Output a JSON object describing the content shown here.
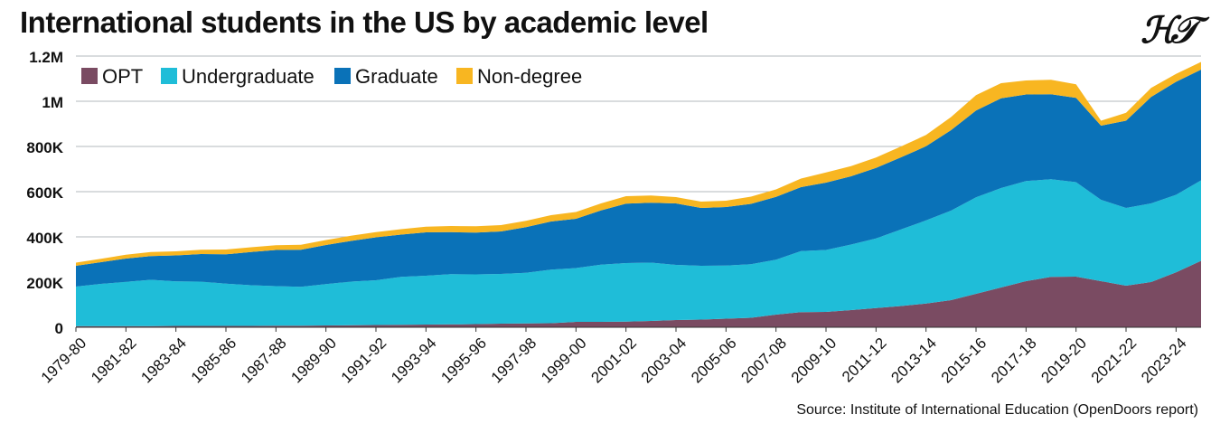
{
  "title": "International students in the US by academic level",
  "logo_text": "HT",
  "source": "Source: Institute of International Education (OpenDoors report)",
  "chart_data": {
    "type": "area",
    "stacked": true,
    "ylim": [
      0,
      1200000
    ],
    "y_ticks": [
      0,
      200000,
      400000,
      600000,
      800000,
      1000000,
      1200000
    ],
    "y_tick_labels": [
      "0",
      "200K",
      "400K",
      "600K",
      "800K",
      "1M",
      "1.2M"
    ],
    "grid": "horizontal",
    "legend_position": "top-left",
    "categories": [
      "1979-80",
      "1980-81",
      "1981-82",
      "1982-83",
      "1983-84",
      "1984-85",
      "1985-86",
      "1986-87",
      "1987-88",
      "1988-89",
      "1989-90",
      "1990-91",
      "1991-92",
      "1992-93",
      "1993-94",
      "1994-95",
      "1995-96",
      "1996-97",
      "1997-98",
      "1998-99",
      "1999-00",
      "2000-01",
      "2001-02",
      "2002-03",
      "2003-04",
      "2004-05",
      "2005-06",
      "2006-07",
      "2007-08",
      "2008-09",
      "2009-10",
      "2010-11",
      "2011-12",
      "2012-13",
      "2013-14",
      "2014-15",
      "2015-16",
      "2016-17",
      "2017-18",
      "2018-19",
      "2019-20",
      "2020-21",
      "2021-22",
      "2022-23",
      "2023-24",
      "2024-25"
    ],
    "x_tick_labels": [
      "1979-80",
      "1981-82",
      "1983-84",
      "1985-86",
      "1987-88",
      "1989-90",
      "1991-92",
      "1993-94",
      "1995-96",
      "1997-98",
      "1999-00",
      "2001-02",
      "2003-04",
      "2005-06",
      "2007-08",
      "2009-10",
      "2011-12",
      "2013-14",
      "2015-16",
      "2017-18",
      "2019-20",
      "2021-22",
      "2023-24"
    ],
    "series": [
      {
        "name": "OPT",
        "color": "#7a4b62",
        "values": [
          5000,
          5000,
          5000,
          5000,
          6000,
          6000,
          6000,
          6000,
          7000,
          7000,
          8000,
          9000,
          10000,
          11000,
          12000,
          13000,
          14000,
          16000,
          17000,
          18000,
          24000,
          24000,
          25000,
          28000,
          32000,
          34000,
          38000,
          42000,
          56000,
          67000,
          68000,
          76000,
          85000,
          94000,
          105000,
          120000,
          148000,
          176000,
          204000,
          223000,
          224000,
          204000,
          184000,
          200000,
          243000,
          294000
        ]
      },
      {
        "name": "Undergraduate",
        "color": "#1fbdd8",
        "values": [
          175000,
          187000,
          196000,
          205000,
          197000,
          196000,
          187000,
          180000,
          175000,
          172000,
          183000,
          193000,
          198000,
          212000,
          216000,
          222000,
          220000,
          220000,
          224000,
          237000,
          238000,
          253000,
          259000,
          258000,
          244000,
          238000,
          235000,
          237000,
          243000,
          270000,
          274000,
          290000,
          308000,
          339000,
          368000,
          396000,
          427000,
          440000,
          443000,
          432000,
          418000,
          360000,
          344000,
          348000,
          343000,
          356000
        ]
      },
      {
        "name": "Graduate",
        "color": "#0a72b8",
        "values": [
          92000,
          96000,
          103000,
          105000,
          115000,
          122000,
          130000,
          147000,
          160000,
          164000,
          173000,
          180000,
          190000,
          187000,
          192000,
          186000,
          185000,
          188000,
          202000,
          213000,
          218000,
          240000,
          263000,
          265000,
          272000,
          256000,
          259000,
          267000,
          278000,
          283000,
          298000,
          302000,
          312000,
          319000,
          328000,
          356000,
          384000,
          397000,
          383000,
          376000,
          373000,
          328000,
          386000,
          471000,
          500000,
          490000
        ]
      },
      {
        "name": "Non-degree",
        "color": "#f8b621",
        "values": [
          14000,
          15000,
          17000,
          18000,
          18000,
          19000,
          21000,
          21000,
          21000,
          22000,
          22000,
          23000,
          23000,
          24000,
          25000,
          27000,
          28000,
          28000,
          28000,
          28000,
          30000,
          31000,
          33000,
          32000,
          28000,
          28000,
          28000,
          32000,
          33000,
          38000,
          45000,
          45000,
          46000,
          48000,
          50000,
          58000,
          68000,
          67000,
          62000,
          64000,
          60000,
          22000,
          35000,
          40000,
          35000,
          34000
        ]
      }
    ]
  }
}
